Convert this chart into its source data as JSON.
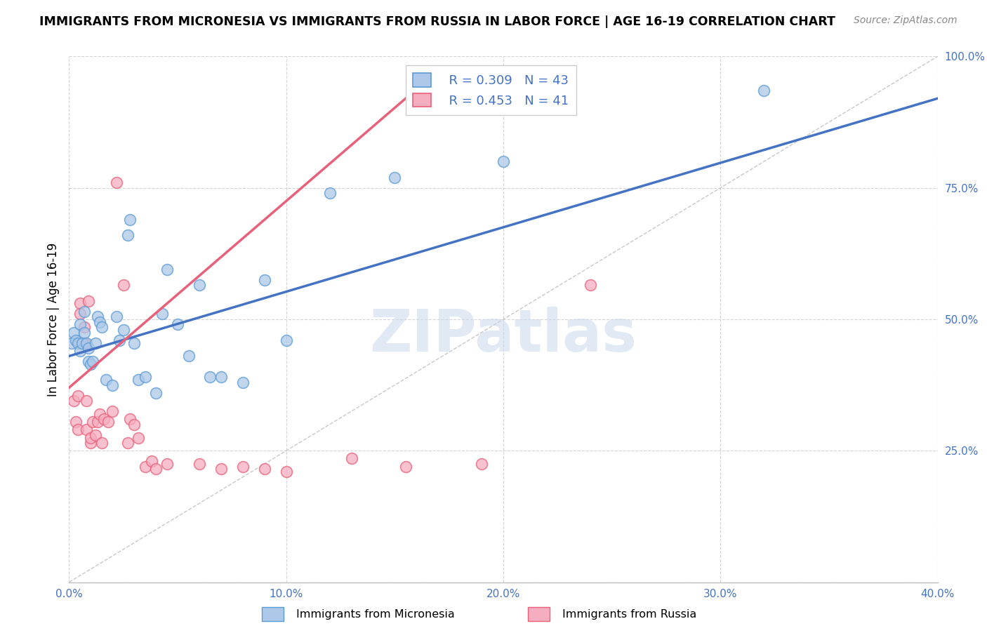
{
  "title": "IMMIGRANTS FROM MICRONESIA VS IMMIGRANTS FROM RUSSIA IN LABOR FORCE | AGE 16-19 CORRELATION CHART",
  "source": "Source: ZipAtlas.com",
  "ylabel": "In Labor Force | Age 16-19",
  "xlim": [
    0.0,
    0.4
  ],
  "ylim": [
    0.0,
    1.0
  ],
  "xticks": [
    0.0,
    0.1,
    0.2,
    0.3,
    0.4
  ],
  "xticklabels": [
    "0.0%",
    "10.0%",
    "20.0%",
    "30.0%",
    "40.0%"
  ],
  "yticks": [
    0.0,
    0.25,
    0.5,
    0.75,
    1.0
  ],
  "yticklabels": [
    "",
    "25.0%",
    "50.0%",
    "75.0%",
    "100.0%"
  ],
  "micronesia_color": "#adc8e8",
  "russia_color": "#f5adc0",
  "micronesia_edge": "#5b9bd5",
  "russia_edge": "#e8607a",
  "trend_micronesia": "#4472c4",
  "trend_russia": "#e8607a",
  "R_micronesia": 0.309,
  "N_micronesia": 43,
  "R_russia": 0.453,
  "N_russia": 41,
  "watermark": "ZIPatlas",
  "micronesia_x": [
    0.001,
    0.002,
    0.003,
    0.004,
    0.005,
    0.005,
    0.006,
    0.007,
    0.007,
    0.008,
    0.009,
    0.009,
    0.01,
    0.011,
    0.012,
    0.013,
    0.014,
    0.015,
    0.017,
    0.02,
    0.022,
    0.023,
    0.025,
    0.027,
    0.028,
    0.03,
    0.032,
    0.035,
    0.04,
    0.043,
    0.045,
    0.05,
    0.055,
    0.06,
    0.065,
    0.07,
    0.08,
    0.09,
    0.1,
    0.12,
    0.15,
    0.2,
    0.32
  ],
  "micronesia_y": [
    0.455,
    0.475,
    0.46,
    0.455,
    0.44,
    0.49,
    0.455,
    0.475,
    0.515,
    0.455,
    0.445,
    0.42,
    0.415,
    0.42,
    0.455,
    0.505,
    0.495,
    0.485,
    0.385,
    0.375,
    0.505,
    0.46,
    0.48,
    0.66,
    0.69,
    0.455,
    0.385,
    0.39,
    0.36,
    0.51,
    0.595,
    0.49,
    0.43,
    0.565,
    0.39,
    0.39,
    0.38,
    0.575,
    0.46,
    0.74,
    0.77,
    0.8,
    0.935
  ],
  "russia_x": [
    0.002,
    0.003,
    0.004,
    0.004,
    0.005,
    0.005,
    0.006,
    0.007,
    0.007,
    0.008,
    0.008,
    0.009,
    0.01,
    0.01,
    0.011,
    0.012,
    0.013,
    0.014,
    0.015,
    0.016,
    0.018,
    0.02,
    0.022,
    0.025,
    0.027,
    0.028,
    0.03,
    0.032,
    0.035,
    0.038,
    0.04,
    0.045,
    0.06,
    0.07,
    0.08,
    0.09,
    0.1,
    0.13,
    0.155,
    0.19,
    0.24
  ],
  "russia_y": [
    0.345,
    0.305,
    0.355,
    0.29,
    0.53,
    0.51,
    0.455,
    0.485,
    0.455,
    0.345,
    0.29,
    0.535,
    0.265,
    0.275,
    0.305,
    0.28,
    0.305,
    0.32,
    0.265,
    0.31,
    0.305,
    0.325,
    0.76,
    0.565,
    0.265,
    0.31,
    0.3,
    0.275,
    0.22,
    0.23,
    0.215,
    0.225,
    0.225,
    0.215,
    0.22,
    0.215,
    0.21,
    0.235,
    0.22,
    0.225,
    0.565
  ],
  "trend_mic_x0": 0.0,
  "trend_mic_y0": 0.43,
  "trend_mic_x1": 0.4,
  "trend_mic_y1": 0.92,
  "trend_rus_x0": 0.0,
  "trend_rus_y0": 0.37,
  "trend_rus_x1": 0.155,
  "trend_rus_y1": 0.92
}
